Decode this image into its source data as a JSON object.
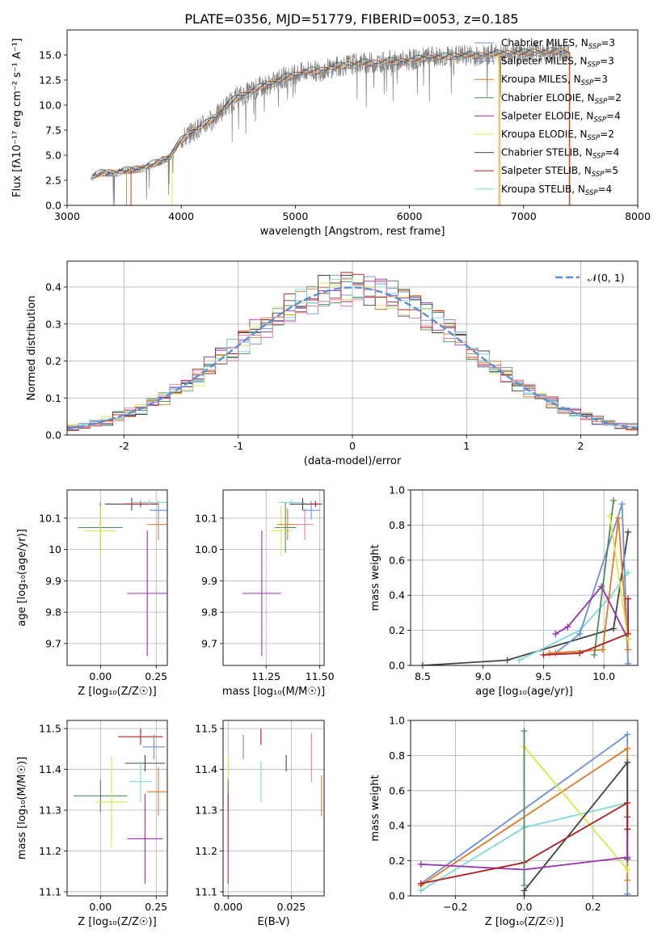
{
  "figure_title": "PLATE=0356, MJD=51779, FIBERID=0053, z=0.185",
  "palette": {
    "chabrier_miles": "#6b8fd6",
    "salpeter_miles": "#6b8fd6",
    "kroupa_miles": "#e07b2a",
    "chabrier_elodie": "#4f8a5b",
    "salpeter_elodie": "#9a2fb0",
    "kroupa_elodie": "#d8e84a",
    "chabrier_stelib": "#444444",
    "salpeter_stelib": "#b01f1f",
    "kroupa_stelib": "#7fd9d6",
    "data": "#808080",
    "pink": "#e87fa8",
    "gauss": "#5b8fd4",
    "grid": "#b0b0b0"
  },
  "chart_data": [
    {
      "id": "spectrum",
      "type": "line",
      "title": "PLATE=0356, MJD=51779, FIBERID=0053, z=0.185",
      "xlabel": "wavelength [Angstrom, rest frame]",
      "ylabel": "Flux [fλ10⁻¹⁷ erg cm⁻² s⁻¹ A⁻¹]",
      "xlim": [
        3000,
        8000
      ],
      "ylim": [
        0,
        17.5
      ],
      "xticks": [
        3000,
        4000,
        5000,
        6000,
        7000,
        8000
      ],
      "yticks": [
        0.0,
        2.5,
        5.0,
        7.5,
        10.0,
        12.5,
        15.0
      ],
      "grid": false,
      "legend_position": "top-right",
      "legend": [
        {
          "label": "Chabrier MILES, N",
          "sub": "SSP",
          "tail": "=3",
          "color_key": "chabrier_miles"
        },
        {
          "label": "Salpeter MILES, N",
          "sub": "SSP",
          "tail": "=3",
          "color_key": "salpeter_miles"
        },
        {
          "label": "Kroupa MILES, N",
          "sub": "SSP",
          "tail": "=3",
          "color_key": "kroupa_miles"
        },
        {
          "label": "Chabrier ELODIE, N",
          "sub": "SSP",
          "tail": "=2",
          "color_key": "chabrier_elodie"
        },
        {
          "label": "Salpeter ELODIE, N",
          "sub": "SSP",
          "tail": "=4",
          "color_key": "salpeter_elodie"
        },
        {
          "label": "Kroupa ELODIE, N",
          "sub": "SSP",
          "tail": "=2",
          "color_key": "kroupa_elodie"
        },
        {
          "label": "Chabrier STELIB, N",
          "sub": "SSP",
          "tail": "=4",
          "color_key": "chabrier_stelib"
        },
        {
          "label": "Salpeter STELIB, N",
          "sub": "SSP",
          "tail": "=5",
          "color_key": "salpeter_stelib"
        },
        {
          "label": "Kroupa STELIB, N",
          "sub": "SSP",
          "tail": "=4",
          "color_key": "kroupa_stelib"
        }
      ],
      "continuum": {
        "wavelength": [
          3200,
          3300,
          3400,
          3500,
          3600,
          3700,
          3800,
          3900,
          4000,
          4100,
          4200,
          4300,
          4400,
          4500,
          4600,
          4700,
          4800,
          4900,
          5000,
          5100,
          5200,
          5300,
          5400,
          5500,
          5600,
          5700,
          5800,
          5900,
          6000,
          6100,
          6200,
          6300,
          6400,
          6500,
          6600,
          6700,
          6800,
          6900,
          7000,
          7100,
          7200,
          7300,
          7400
        ],
        "flux": [
          2.8,
          3.2,
          3.3,
          3.4,
          3.6,
          3.9,
          4.3,
          4.9,
          6.5,
          7.4,
          8.0,
          8.8,
          10.0,
          10.8,
          11.3,
          11.8,
          12.2,
          12.7,
          13.0,
          13.4,
          13.4,
          13.7,
          13.9,
          14.1,
          14.2,
          14.2,
          14.4,
          14.3,
          14.5,
          14.6,
          14.8,
          14.8,
          14.9,
          15.0,
          14.9,
          15.1,
          15.1,
          15.2,
          15.2,
          15.3,
          15.3,
          15.4,
          15.3
        ]
      }
    },
    {
      "id": "residuals",
      "type": "line",
      "xlabel": "(data-model)/error",
      "ylabel": "Normed distribution",
      "xlim": [
        -2.5,
        2.5
      ],
      "ylim": [
        0,
        0.47
      ],
      "xticks": [
        -2,
        -1,
        0,
        1,
        2
      ],
      "yticks": [
        0.0,
        0.1,
        0.2,
        0.3,
        0.4
      ],
      "grid": true,
      "legend_position": "top-right",
      "legend": [
        {
          "label": "𝒩(0, 1)",
          "color_key": "gauss"
        }
      ],
      "gaussian": {
        "mean": 0,
        "sigma": 1
      },
      "histogram_series_colors": [
        "chabrier_miles",
        "kroupa_miles",
        "chabrier_elodie",
        "salpeter_elodie",
        "kroupa_elodie",
        "chabrier_stelib",
        "salpeter_stelib",
        "kroupa_stelib",
        "pink"
      ]
    },
    {
      "id": "z_vs_age",
      "type": "scatter",
      "xlabel": "Z [log₁₀(Z/Z☉)]",
      "ylabel": "age  [log₁₀(age/yr)]",
      "xlim": [
        -0.15,
        0.3
      ],
      "ylim": [
        9.63,
        10.19
      ],
      "xticks": [
        0.0,
        0.25
      ],
      "xticklabels": [
        "0.00",
        "0.25"
      ],
      "yticks": [
        9.7,
        9.8,
        9.9,
        10.0,
        10.1
      ],
      "grid": true,
      "points": [
        {
          "color_key": "chabrier_elodie",
          "x": 0.0,
          "xerr": 0.1,
          "y": 10.07,
          "yerr": 0.08
        },
        {
          "color_key": "kroupa_elodie",
          "x": 0.0,
          "xerr": 0.07,
          "y": 10.06,
          "yerr": 0.08
        },
        {
          "color_key": "salpeter_elodie",
          "x": 0.21,
          "xerr": 0.09,
          "y": 9.86,
          "yerr": 0.2
        },
        {
          "color_key": "chabrier_stelib",
          "x": 0.14,
          "xerr": 0.12,
          "y": 10.145,
          "yerr": 0.02
        },
        {
          "color_key": "salpeter_stelib",
          "x": 0.18,
          "xerr": 0.08,
          "y": 10.145,
          "yerr": 0.01
        },
        {
          "color_key": "kroupa_miles",
          "x": 0.26,
          "xerr": 0.05,
          "y": 10.08,
          "yerr": 0.05
        },
        {
          "color_key": "chabrier_miles",
          "x": 0.26,
          "xerr": 0.04,
          "y": 10.125,
          "yerr": 0.03
        },
        {
          "color_key": "kroupa_stelib",
          "x": 0.22,
          "xerr": 0.08,
          "y": 10.15,
          "yerr": 0.01
        }
      ]
    },
    {
      "id": "mass_vs_age",
      "type": "scatter",
      "xlabel": "mass [log₁₀(M/M☉)]",
      "xlim": [
        11.05,
        11.52
      ],
      "ylim": [
        9.63,
        10.19
      ],
      "xticks": [
        11.25,
        11.5
      ],
      "xticklabels": [
        "11.25",
        "11.50"
      ],
      "yticks": [
        9.7,
        9.8,
        9.9,
        10.0,
        10.1
      ],
      "grid": true,
      "points": [
        {
          "color_key": "salpeter_elodie",
          "x": 11.23,
          "xerr": 0.09,
          "y": 9.86,
          "yerr": 0.2
        },
        {
          "color_key": "chabrier_elodie",
          "x": 11.34,
          "xerr": 0.05,
          "y": 10.07,
          "yerr": 0.08
        },
        {
          "color_key": "kroupa_elodie",
          "x": 11.32,
          "xerr": 0.05,
          "y": 10.06,
          "yerr": 0.08
        },
        {
          "color_key": "kroupa_miles",
          "x": 11.35,
          "xerr": 0.05,
          "y": 10.08,
          "yerr": 0.05
        },
        {
          "color_key": "kroupa_stelib",
          "x": 11.37,
          "xerr": 0.06,
          "y": 10.15,
          "yerr": 0.01
        },
        {
          "color_key": "chabrier_stelib",
          "x": 11.42,
          "xerr": 0.06,
          "y": 10.145,
          "yerr": 0.02
        },
        {
          "color_key": "pink",
          "x": 11.43,
          "xerr": 0.04,
          "y": 10.08,
          "yerr": 0.05
        },
        {
          "color_key": "chabrier_miles",
          "x": 11.46,
          "xerr": 0.04,
          "y": 10.125,
          "yerr": 0.03
        },
        {
          "color_key": "salpeter_stelib",
          "x": 11.48,
          "xerr": 0.03,
          "y": 10.145,
          "yerr": 0.01
        }
      ]
    },
    {
      "id": "age_vs_weight",
      "type": "line",
      "xlabel": "age  [log₁₀(age/yr)]",
      "ylabel": "mass weight",
      "xlim": [
        8.4,
        10.28
      ],
      "ylim": [
        0,
        1.0
      ],
      "xticks": [
        8.5,
        9.0,
        9.5,
        10.0
      ],
      "xticklabels": [
        "8.5",
        "9.0",
        "9.5",
        "10.0"
      ],
      "yticks": [
        0.0,
        0.2,
        0.4,
        0.6,
        0.8,
        1.0
      ],
      "grid": true,
      "series": [
        {
          "color_key": "chabrier_stelib",
          "x": [
            8.5,
            9.2,
            10.08,
            10.2
          ],
          "y": [
            0.0,
            0.03,
            0.21,
            0.76
          ]
        },
        {
          "color_key": "kroupa_stelib",
          "x": [
            9.3,
            9.8,
            10.05,
            10.2
          ],
          "y": [
            0.03,
            0.2,
            0.39,
            0.53
          ]
        },
        {
          "color_key": "chabrier_miles",
          "x": [
            9.6,
            9.8,
            10.15,
            10.2
          ],
          "y": [
            0.07,
            0.18,
            0.92,
            0.01
          ]
        },
        {
          "color_key": "kroupa_miles",
          "x": [
            9.55,
            9.99,
            10.12,
            10.2
          ],
          "y": [
            0.07,
            0.09,
            0.84,
            0.09
          ]
        },
        {
          "color_key": "salpeter_elodie",
          "x": [
            9.6,
            9.7,
            9.98,
            10.2
          ],
          "y": [
            0.18,
            0.22,
            0.45,
            0.15
          ]
        },
        {
          "color_key": "chabrier_elodie",
          "x": [
            9.92,
            10.08
          ],
          "y": [
            0.06,
            0.94
          ]
        },
        {
          "color_key": "kroupa_elodie",
          "x": [
            10.05,
            10.2
          ],
          "y": [
            0.85,
            0.15
          ]
        },
        {
          "color_key": "salpeter_stelib",
          "x": [
            9.5,
            9.8,
            10.2,
            10.2
          ],
          "y": [
            0.06,
            0.07,
            0.18,
            0.38
          ]
        }
      ]
    },
    {
      "id": "z_vs_mass",
      "type": "scatter",
      "xlabel": "Z [log₁₀(Z/Z☉)]",
      "ylabel": "mass [log₁₀(M/M☉)]",
      "xlim": [
        -0.15,
        0.3
      ],
      "ylim": [
        11.09,
        11.52
      ],
      "xticks": [
        0.0,
        0.25
      ],
      "xticklabels": [
        "0.00",
        "0.25"
      ],
      "yticks": [
        11.1,
        11.2,
        11.3,
        11.4,
        11.5
      ],
      "grid": true,
      "points": [
        {
          "color_key": "chabrier_elodie",
          "x": 0.0,
          "xerr": 0.12,
          "y": 11.335,
          "yerr": 0.04
        },
        {
          "color_key": "kroupa_elodie",
          "x": 0.05,
          "xerr": 0.07,
          "y": 11.32,
          "yerr": 0.11
        },
        {
          "color_key": "salpeter_elodie",
          "x": 0.2,
          "xerr": 0.08,
          "y": 11.23,
          "yerr": 0.11
        },
        {
          "color_key": "chabrier_stelib",
          "x": 0.2,
          "xerr": 0.09,
          "y": 11.415,
          "yerr": 0.02
        },
        {
          "color_key": "salpeter_stelib",
          "x": 0.18,
          "xerr": 0.1,
          "y": 11.48,
          "yerr": 0.02
        },
        {
          "color_key": "kroupa_stelib",
          "x": 0.18,
          "xerr": 0.05,
          "y": 11.37,
          "yerr": 0.05
        },
        {
          "color_key": "kroupa_miles",
          "x": 0.26,
          "xerr": 0.05,
          "y": 11.345,
          "yerr": 0.06
        },
        {
          "color_key": "chabrier_miles",
          "x": 0.24,
          "xerr": 0.05,
          "y": 11.455,
          "yerr": 0.03
        }
      ]
    },
    {
      "id": "ebv_vs_mass",
      "type": "scatter",
      "xlabel": "E(B-V)",
      "xlim": [
        -0.002,
        0.038
      ],
      "ylim": [
        11.09,
        11.52
      ],
      "xticks": [
        0.0,
        0.025
      ],
      "xticklabels": [
        "0.000",
        "0.025"
      ],
      "yticks": [
        11.1,
        11.2,
        11.3,
        11.4,
        11.5
      ],
      "grid": true,
      "points": [
        {
          "color_key": "kroupa_elodie",
          "x": 0.0,
          "xerr": 0,
          "y": 11.32,
          "yerr": 0.11
        },
        {
          "color_key": "chabrier_elodie",
          "x": 0.0,
          "xerr": 0,
          "y": 11.335,
          "yerr": 0.04
        },
        {
          "color_key": "chabrier_miles",
          "x": 0.006,
          "xerr": 0,
          "y": 11.455,
          "yerr": 0.03
        },
        {
          "color_key": "salpeter_stelib",
          "x": 0.013,
          "xerr": 0,
          "y": 11.48,
          "yerr": 0.02
        },
        {
          "color_key": "kroupa_stelib",
          "x": 0.013,
          "xerr": 0,
          "y": 11.37,
          "yerr": 0.05
        },
        {
          "color_key": "salpeter_elodie",
          "x": 0.0,
          "xerr": 0,
          "y": 11.23,
          "yerr": 0.11
        },
        {
          "color_key": "chabrier_stelib",
          "x": 0.023,
          "xerr": 0,
          "y": 11.415,
          "yerr": 0.02
        },
        {
          "color_key": "pink",
          "x": 0.033,
          "xerr": 0,
          "y": 11.43,
          "yerr": 0.06
        },
        {
          "color_key": "kroupa_miles",
          "x": 0.037,
          "xerr": 0,
          "y": 11.335,
          "yerr": 0.05
        }
      ]
    },
    {
      "id": "z_vs_weight",
      "type": "line",
      "xlabel": "Z [log₁₀(Z/Z☉)]",
      "ylabel": "mass weight",
      "xlim": [
        -0.33,
        0.33
      ],
      "ylim": [
        0,
        1.0
      ],
      "xticks": [
        -0.2,
        0.0,
        0.2
      ],
      "xticklabels": [
        "−0.2",
        "0.0",
        "0.2"
      ],
      "yticks": [
        0.0,
        0.2,
        0.4,
        0.6,
        0.8,
        1.0
      ],
      "grid": true,
      "series": [
        {
          "color_key": "chabrier_miles",
          "x": [
            -0.3,
            0.3,
            0.3
          ],
          "y": [
            0.07,
            0.92,
            0.01
          ]
        },
        {
          "color_key": "kroupa_miles",
          "x": [
            -0.3,
            0.3,
            0.3
          ],
          "y": [
            0.06,
            0.84,
            0.09
          ]
        },
        {
          "color_key": "kroupa_stelib",
          "x": [
            -0.3,
            0.0,
            0.3
          ],
          "y": [
            0.03,
            0.39,
            0.53
          ]
        },
        {
          "color_key": "kroupa_elodie",
          "x": [
            0.0,
            0.3
          ],
          "y": [
            0.85,
            0.15
          ]
        },
        {
          "color_key": "chabrier_stelib",
          "x": [
            0.0,
            0.0,
            0.3,
            0.3
          ],
          "y": [
            0.0,
            0.03,
            0.76,
            0.21
          ]
        },
        {
          "color_key": "salpeter_elodie",
          "x": [
            -0.3,
            0.0,
            0.3,
            0.3
          ],
          "y": [
            0.18,
            0.15,
            0.22,
            0.45
          ]
        },
        {
          "color_key": "salpeter_stelib",
          "x": [
            -0.3,
            0.0,
            0.3,
            0.3
          ],
          "y": [
            0.07,
            0.19,
            0.53,
            0.38
          ]
        },
        {
          "color_key": "chabrier_elodie",
          "x": [
            0.0,
            0.0
          ],
          "y": [
            0.06,
            0.94
          ]
        }
      ]
    }
  ]
}
